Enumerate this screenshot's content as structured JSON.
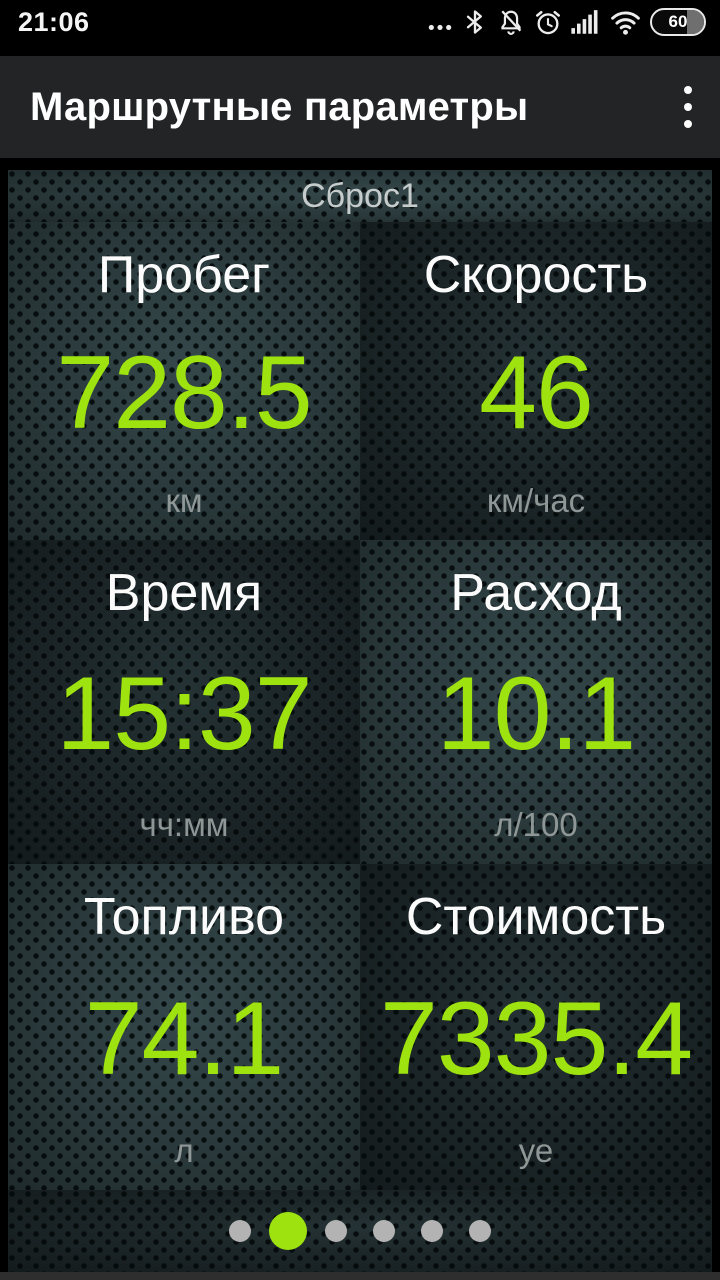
{
  "status_bar": {
    "time": "21:06",
    "battery_level": "60",
    "icons": [
      "more-notifications",
      "bluetooth",
      "notifications-off",
      "alarm",
      "signal-strength",
      "wifi",
      "battery"
    ]
  },
  "app_bar": {
    "title": "Маршрутные параметры",
    "overflow_menu": "menu"
  },
  "trip": {
    "reset_label": "Сброс1",
    "tiles": [
      {
        "label": "Пробег",
        "value": "728.5",
        "unit": "км"
      },
      {
        "label": "Скорость",
        "value": "46",
        "unit": "км/час"
      },
      {
        "label": "Время",
        "value": "15:37",
        "unit": "чч:мм"
      },
      {
        "label": "Расход",
        "value": "10.1",
        "unit": "л/100"
      },
      {
        "label": "Топливо",
        "value": "74.1",
        "unit": "л"
      },
      {
        "label": "Стоимость",
        "value": "7335.4",
        "unit": "уе"
      }
    ]
  },
  "pager": {
    "total_pages": 6,
    "active_page": 2
  },
  "colors": {
    "accent_green": "#9ee30f",
    "tile_light": "#2c3c3e",
    "tile_dark": "#1c2628",
    "unit_gray": "#8f9696",
    "app_bar_bg": "#222425"
  }
}
